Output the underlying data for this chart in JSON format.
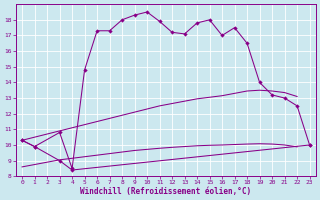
{
  "bg_color": "#cce8ef",
  "line_color": "#880088",
  "xlabel": "Windchill (Refroidissement éolien,°C)",
  "xlim": [
    -0.5,
    23.5
  ],
  "ylim": [
    8,
    19
  ],
  "xticks": [
    0,
    1,
    2,
    3,
    4,
    5,
    6,
    7,
    8,
    9,
    10,
    11,
    12,
    13,
    14,
    15,
    16,
    17,
    18,
    19,
    20,
    21,
    22,
    23
  ],
  "yticks": [
    8,
    9,
    10,
    11,
    12,
    13,
    14,
    15,
    16,
    17,
    18
  ],
  "curve_main_x": [
    0,
    1,
    3,
    4,
    5,
    6,
    7,
    8,
    9,
    10,
    11,
    12,
    13,
    14,
    15,
    16,
    17,
    18,
    19,
    20,
    21,
    22,
    23
  ],
  "curve_main_y": [
    10.3,
    9.9,
    10.8,
    8.5,
    14.8,
    17.3,
    17.3,
    18.0,
    18.3,
    18.5,
    17.9,
    17.2,
    17.1,
    17.8,
    18.0,
    17.0,
    17.5,
    16.5,
    14.0,
    13.2,
    13.0,
    12.5,
    10.0
  ],
  "curve_bottom_x": [
    0,
    1,
    3,
    4,
    23
  ],
  "curve_bottom_y": [
    10.3,
    9.9,
    9.0,
    8.4,
    10.0
  ],
  "line_upper_x": [
    0,
    1,
    2,
    3,
    4,
    5,
    6,
    7,
    8,
    9,
    10,
    11,
    12,
    13,
    14,
    15,
    16,
    17,
    18,
    19,
    20,
    21,
    22
  ],
  "line_upper_y": [
    10.3,
    10.5,
    10.7,
    10.9,
    11.1,
    11.3,
    11.5,
    11.7,
    11.9,
    12.1,
    12.3,
    12.5,
    12.65,
    12.8,
    12.95,
    13.05,
    13.15,
    13.3,
    13.45,
    13.5,
    13.45,
    13.35,
    13.1
  ],
  "line_lower_x": [
    0,
    1,
    2,
    3,
    4,
    5,
    6,
    7,
    8,
    9,
    10,
    11,
    12,
    13,
    14,
    15,
    16,
    17,
    18,
    19,
    20,
    21,
    22
  ],
  "line_lower_y": [
    8.6,
    8.75,
    8.9,
    9.05,
    9.15,
    9.25,
    9.35,
    9.45,
    9.55,
    9.65,
    9.72,
    9.79,
    9.85,
    9.9,
    9.95,
    9.98,
    10.0,
    10.03,
    10.06,
    10.08,
    10.06,
    10.0,
    9.88
  ]
}
